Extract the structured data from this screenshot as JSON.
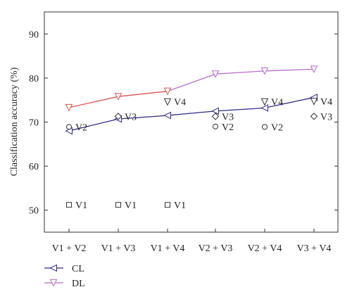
{
  "chart_data": {
    "type": "line",
    "title": "",
    "xlabel": "",
    "ylabel": "Classification accuracy (%)",
    "ylim": [
      45,
      95
    ],
    "yticks": [
      50,
      60,
      70,
      80,
      90
    ],
    "categories": [
      "V1 + V2",
      "V1 + V3",
      "V1 + V4",
      "V2 + V3",
      "V2 + V4",
      "V3 + V4"
    ],
    "grid": false,
    "legend_position": "bottom-left",
    "series": [
      {
        "name": "CL",
        "marker": "triangle-left",
        "color": "#2f2a8a",
        "values": [
          68.0,
          70.7,
          71.5,
          72.5,
          73.2,
          75.6
        ]
      },
      {
        "name": "DL",
        "marker": "triangle-down",
        "color": "#d9534f",
        "color_late": "#b86bc8",
        "values": [
          73.3,
          75.8,
          77.0,
          80.9,
          81.6,
          82.0
        ]
      }
    ],
    "point_markers": [
      {
        "category_index": 0,
        "value": 68.9,
        "shape": "circle",
        "label": "V2"
      },
      {
        "category_index": 1,
        "value": 71.3,
        "shape": "diamond",
        "label": "V3"
      },
      {
        "category_index": 2,
        "value": 74.6,
        "shape": "triangle-down",
        "label": "V4"
      },
      {
        "category_index": 3,
        "value": 71.3,
        "shape": "diamond",
        "label": "V3"
      },
      {
        "category_index": 3,
        "value": 69.0,
        "shape": "circle",
        "label": "V2"
      },
      {
        "category_index": 4,
        "value": 74.6,
        "shape": "triangle-down",
        "label": "V4"
      },
      {
        "category_index": 4,
        "value": 68.9,
        "shape": "circle",
        "label": "V2"
      },
      {
        "category_index": 5,
        "value": 74.7,
        "shape": "triangle-down",
        "label": "V4"
      },
      {
        "category_index": 5,
        "value": 71.3,
        "shape": "diamond",
        "label": "V3"
      },
      {
        "category_index": 0,
        "value": 51.2,
        "shape": "square",
        "label": "V1"
      },
      {
        "category_index": 1,
        "value": 51.2,
        "shape": "square",
        "label": "V1"
      },
      {
        "category_index": 2,
        "value": 51.2,
        "shape": "square",
        "label": "V1"
      }
    ]
  }
}
